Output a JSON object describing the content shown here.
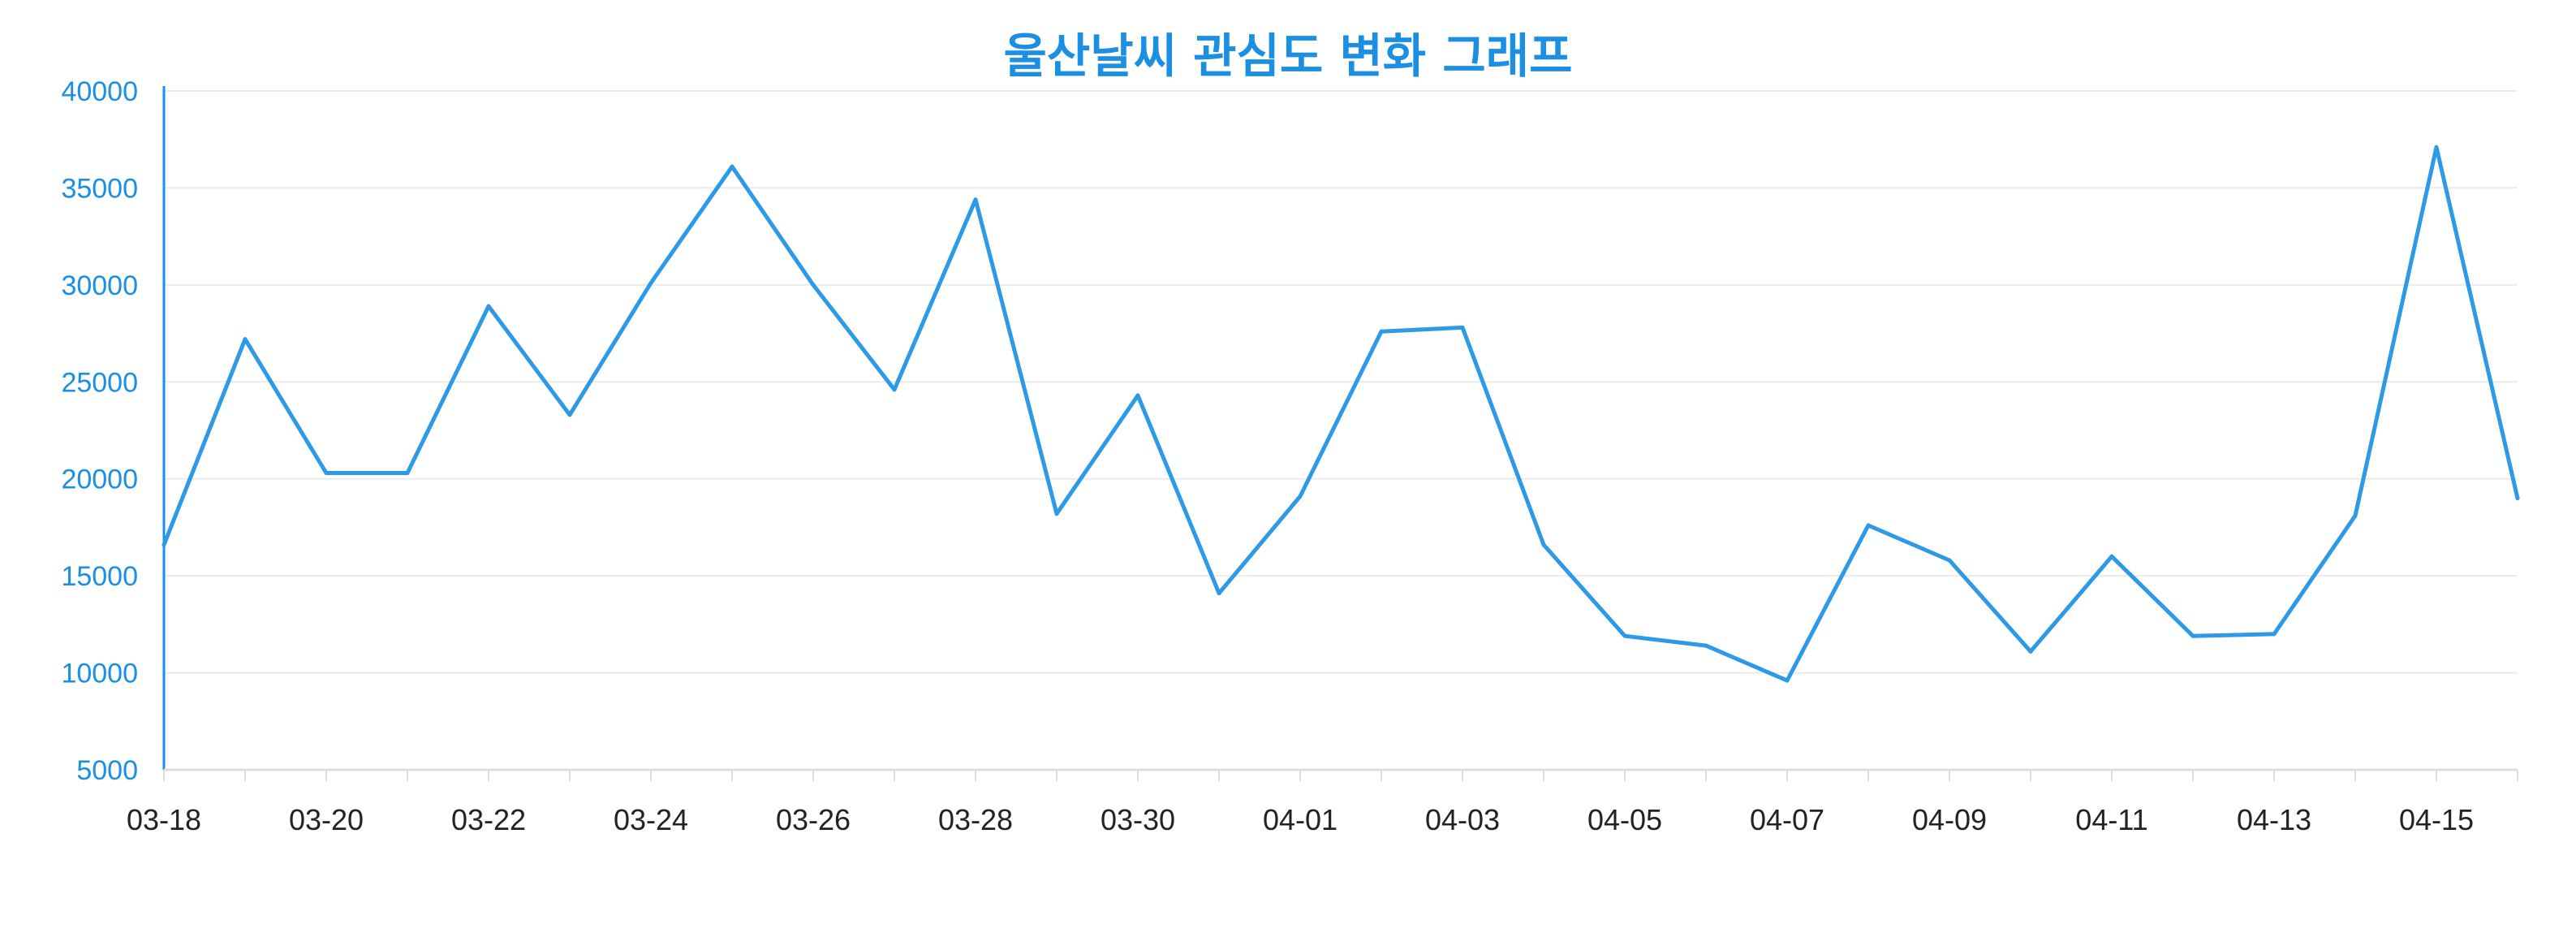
{
  "chart_data": {
    "type": "line",
    "title": "울산날씨 관심도 변화 그래프",
    "xlabel": "",
    "ylabel": "",
    "ylim": [
      5000,
      40000
    ],
    "yticks": [
      5000,
      10000,
      15000,
      20000,
      25000,
      30000,
      35000,
      40000
    ],
    "grid": true,
    "x": [
      "03-18",
      "03-19",
      "03-20",
      "03-21",
      "03-22",
      "03-23",
      "03-24",
      "03-25",
      "03-26",
      "03-27",
      "03-28",
      "03-29",
      "03-30",
      "03-31",
      "04-01",
      "04-02",
      "04-03",
      "04-04",
      "04-05",
      "04-06",
      "04-07",
      "04-08",
      "04-09",
      "04-10",
      "04-11",
      "04-12",
      "04-13",
      "04-14",
      "04-15",
      "04-16"
    ],
    "xtick_labels": [
      {
        "label": "03-18",
        "color": "#222222"
      },
      {
        "label": "03-20",
        "color": "#222222"
      },
      {
        "label": "03-22",
        "color": "#222222"
      },
      {
        "label": "03-24",
        "color": "#e0533a"
      },
      {
        "label": "03-26",
        "color": "#222222"
      },
      {
        "label": "03-28",
        "color": "#222222"
      },
      {
        "label": "03-30",
        "color": "#1a8fe3"
      },
      {
        "label": "04-01",
        "color": "#222222"
      },
      {
        "label": "04-03",
        "color": "#222222"
      },
      {
        "label": "04-05",
        "color": "#222222"
      },
      {
        "label": "04-07",
        "color": "#e0533a"
      },
      {
        "label": "04-09",
        "color": "#222222"
      },
      {
        "label": "04-11",
        "color": "#222222"
      },
      {
        "label": "04-13",
        "color": "#1a8fe3"
      },
      {
        "label": "04-15",
        "color": "#222222"
      }
    ],
    "series": [
      {
        "values": [
          16600,
          27200,
          20300,
          20300,
          28900,
          23300,
          30100,
          36100,
          30000,
          24600,
          34400,
          18200,
          24300,
          14100,
          19100,
          27600,
          27800,
          16600,
          11900,
          11400,
          9600,
          17600,
          15800,
          11100,
          16000,
          11900,
          12000,
          18100,
          37100,
          19000
        ],
        "color": "#2d9ae8"
      }
    ],
    "colors": {
      "title": "#1a8fe3",
      "line": "#2d9ae8",
      "axis": "#1a8fe3",
      "ytick_text": "#1a8fe3",
      "grid": "#ebebeb",
      "xaxis": "#dddddd"
    }
  }
}
